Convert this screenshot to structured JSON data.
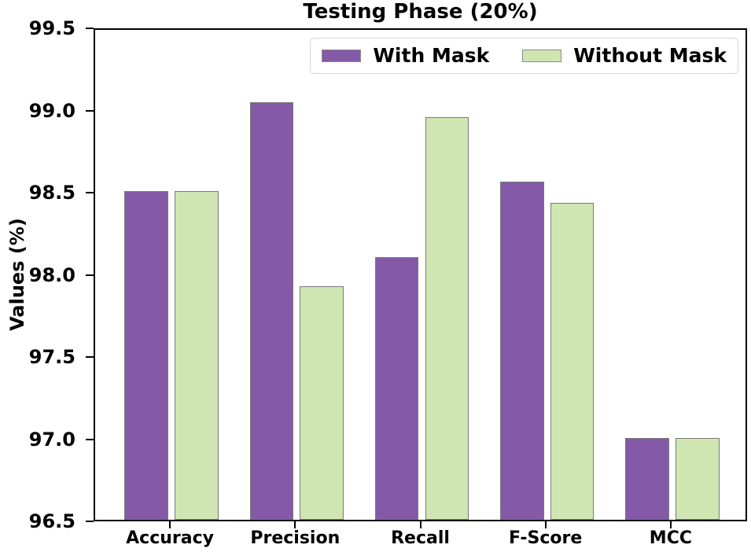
{
  "chart_data": {
    "type": "bar",
    "title": "Testing Phase (20%)",
    "ylabel": "Values (%)",
    "xlabel": "",
    "categories": [
      "Accuracy",
      "Precision",
      "Recall",
      "F-Score",
      "MCC"
    ],
    "series": [
      {
        "name": "With Mask",
        "color": "#8459a8",
        "values": [
          98.5,
          99.04,
          98.1,
          98.56,
          97.0
        ]
      },
      {
        "name": "Without Mask",
        "color": "#cfe6b3",
        "values": [
          98.5,
          97.92,
          98.95,
          98.43,
          97.0
        ]
      }
    ],
    "ylim": [
      96.5,
      99.5
    ],
    "ytick_step": 0.5,
    "ytick_labels": [
      "96.5",
      "97.0",
      "97.5",
      "98.0",
      "98.5",
      "99.0",
      "99.5"
    ],
    "bar_edge_color": "#7a7a7a",
    "axis_color": "#000000",
    "legend_position": "upper right",
    "grid": false
  }
}
